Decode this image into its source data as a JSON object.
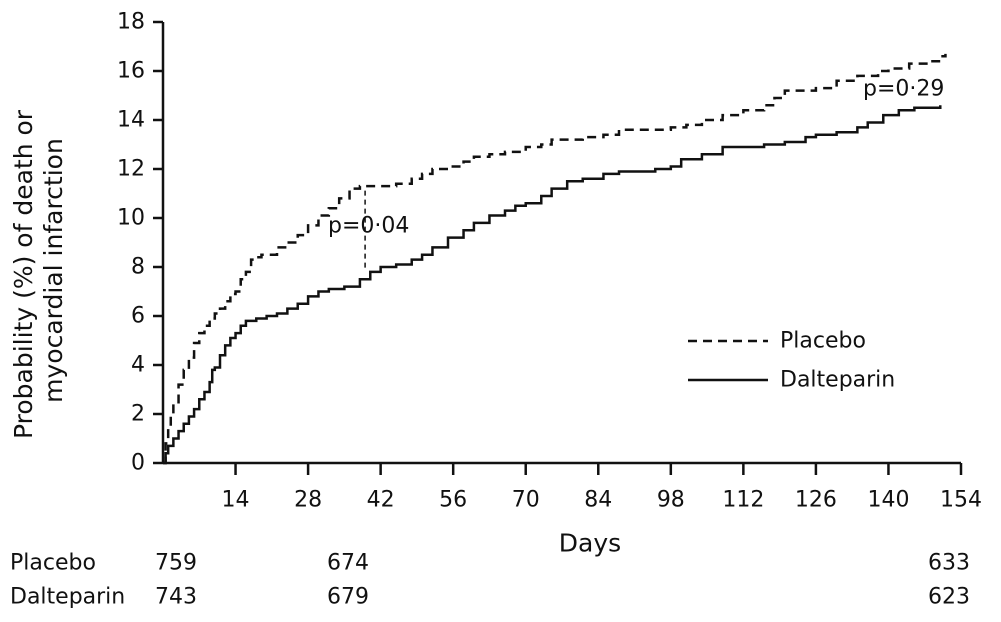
{
  "chart_data": {
    "type": "line",
    "xlabel": "Days",
    "ylabel_lines": [
      "Probability (%) of death or",
      "myocardial infarction"
    ],
    "xlim": [
      0,
      154
    ],
    "ylim": [
      0,
      18
    ],
    "x_ticks": [
      14,
      28,
      42,
      56,
      70,
      84,
      98,
      112,
      126,
      140,
      154
    ],
    "y_ticks": [
      0,
      2,
      4,
      6,
      8,
      10,
      12,
      14,
      16,
      18
    ],
    "grid": false,
    "legend_position": "center-right",
    "series": [
      {
        "name": "Placebo",
        "style": "dashed",
        "x": [
          0,
          0.5,
          1,
          1.5,
          2,
          3,
          4,
          5,
          6,
          7,
          8,
          9,
          10,
          11,
          12,
          13,
          14,
          15,
          16,
          17,
          18,
          19,
          20,
          22,
          24,
          26,
          28,
          30,
          32,
          34,
          36,
          38,
          40,
          42,
          45,
          48,
          50,
          52,
          55,
          58,
          60,
          63,
          66,
          70,
          73,
          75,
          78,
          81,
          85,
          88,
          90,
          95,
          98,
          101,
          104,
          108,
          112,
          116,
          118,
          120,
          123,
          126,
          130,
          134,
          138,
          140,
          144,
          148,
          150,
          151
        ],
        "y": [
          0,
          0.8,
          1.4,
          1.9,
          2.4,
          3.2,
          3.8,
          4.3,
          4.9,
          5.3,
          5.6,
          5.9,
          6.1,
          6.3,
          6.6,
          6.9,
          7.0,
          7.5,
          7.8,
          8.3,
          8.4,
          8.5,
          8.5,
          8.8,
          9.0,
          9.3,
          9.7,
          10.1,
          10.4,
          10.8,
          11.2,
          11.3,
          11.3,
          11.3,
          11.4,
          11.6,
          11.8,
          12.0,
          12.1,
          12.3,
          12.5,
          12.6,
          12.7,
          12.9,
          13.0,
          13.2,
          13.2,
          13.3,
          13.4,
          13.6,
          13.6,
          13.6,
          13.7,
          13.8,
          14.0,
          14.2,
          14.4,
          14.6,
          14.9,
          15.2,
          15.2,
          15.3,
          15.6,
          15.8,
          16.0,
          16.1,
          16.3,
          16.4,
          16.6,
          16.7
        ]
      },
      {
        "name": "Dalteparin",
        "style": "solid",
        "x": [
          0,
          0.5,
          1,
          2,
          3,
          4,
          5,
          6,
          7,
          8,
          9,
          9.5,
          10,
          11,
          12,
          13,
          14,
          15,
          16,
          18,
          20,
          22,
          24,
          26,
          28,
          30,
          32,
          35,
          38,
          40,
          42,
          45,
          48,
          50,
          52,
          55,
          58,
          60,
          63,
          66,
          68,
          70,
          73,
          75,
          78,
          81,
          85,
          88,
          92,
          95,
          98,
          100,
          104,
          108,
          112,
          116,
          120,
          124,
          126,
          130,
          134,
          136,
          139,
          142,
          145,
          150
        ],
        "y": [
          0,
          0.4,
          0.7,
          1.0,
          1.3,
          1.6,
          1.9,
          2.2,
          2.6,
          2.9,
          3.3,
          3.8,
          3.9,
          4.4,
          4.8,
          5.1,
          5.3,
          5.6,
          5.8,
          5.9,
          6.0,
          6.1,
          6.3,
          6.5,
          6.8,
          7.0,
          7.1,
          7.2,
          7.5,
          7.8,
          8.0,
          8.1,
          8.3,
          8.5,
          8.8,
          9.2,
          9.5,
          9.8,
          10.1,
          10.3,
          10.5,
          10.6,
          10.9,
          11.2,
          11.5,
          11.6,
          11.8,
          11.9,
          11.9,
          12.0,
          12.1,
          12.4,
          12.6,
          12.9,
          12.9,
          13.0,
          13.1,
          13.3,
          13.4,
          13.5,
          13.7,
          13.9,
          14.2,
          14.4,
          14.5,
          14.6
        ]
      }
    ],
    "annotations": [
      {
        "text": "p=0·04",
        "x": 39,
        "y1": 7.9,
        "y2": 11.2
      },
      {
        "text": "p=0·29"
      }
    ],
    "at_risk": {
      "rows": [
        {
          "label": "Placebo",
          "values": [
            "759",
            "674",
            "633"
          ]
        },
        {
          "label": "Dalteparin",
          "values": [
            "743",
            "679",
            "623"
          ]
        }
      ]
    }
  }
}
